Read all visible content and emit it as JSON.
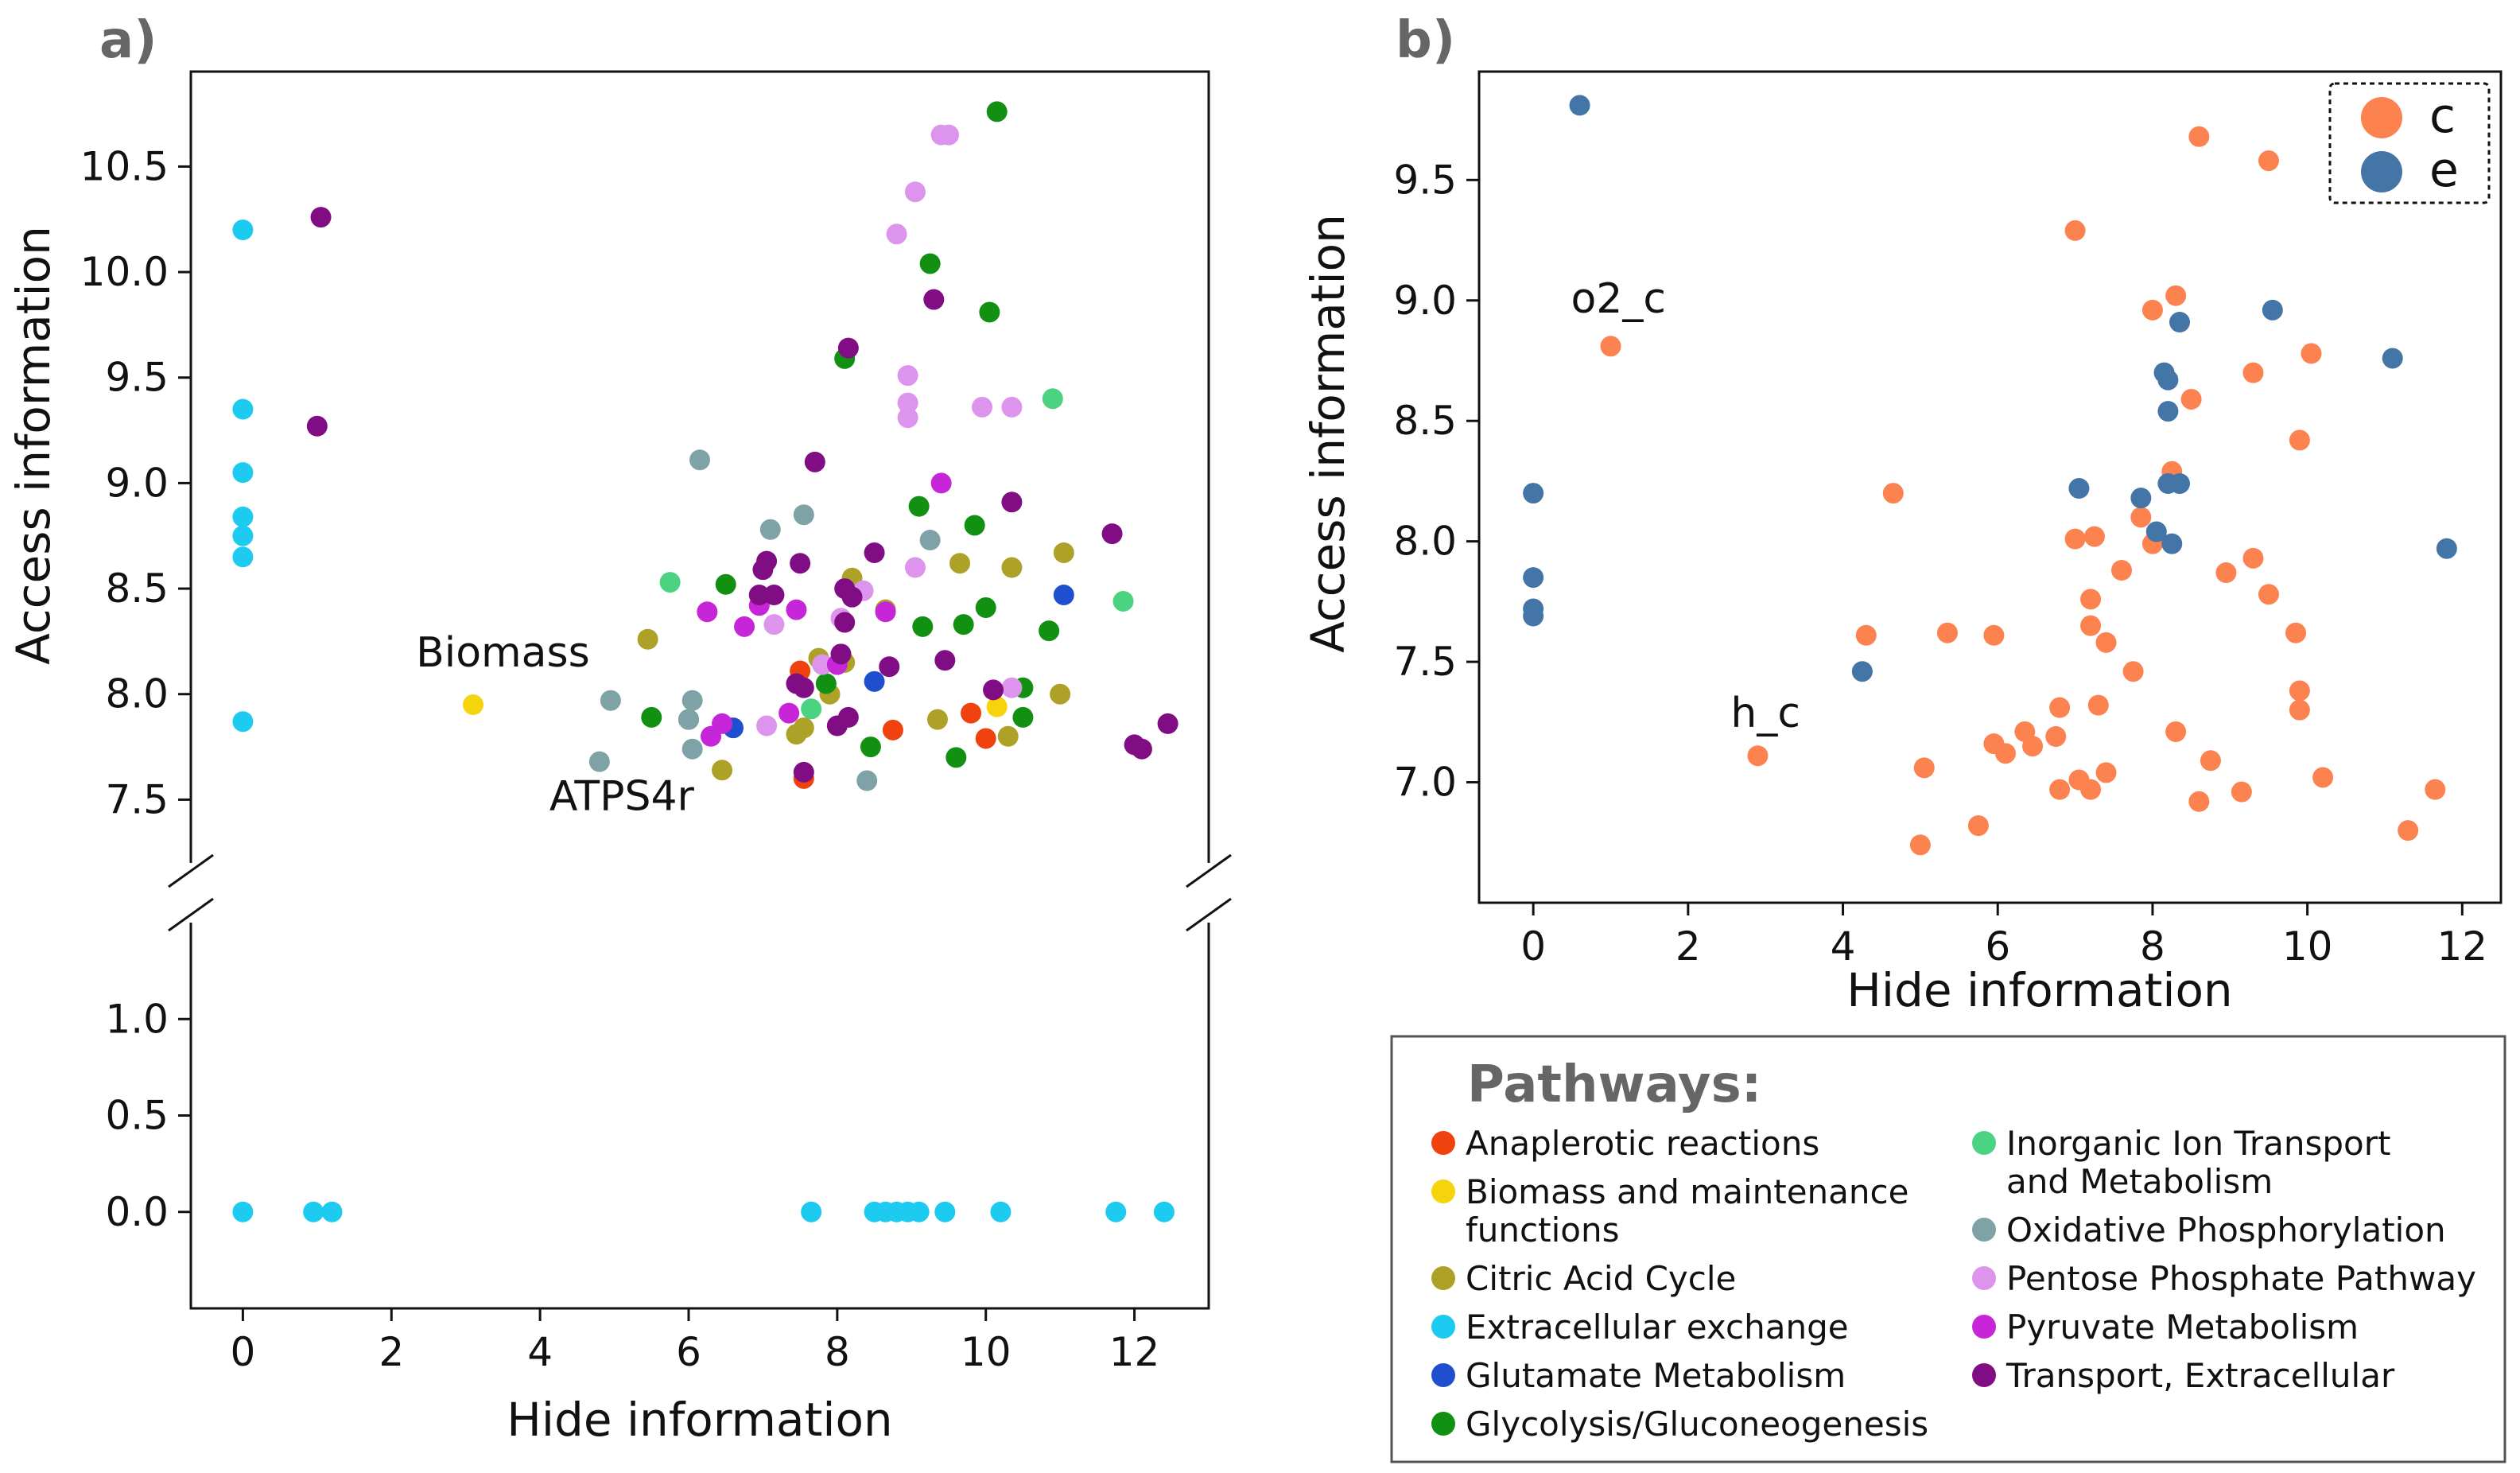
{
  "chart_data": [
    {
      "panel": "a)",
      "type": "scatter",
      "broken_y_axis": true,
      "xlabel": "Hide information",
      "ylabel": "Access information",
      "xlim": [
        -0.7,
        13.0
      ],
      "ylim_upper": [
        7.2,
        10.95
      ],
      "ylim_lower": [
        -0.5,
        1.5
      ],
      "xticks": [
        0,
        2,
        4,
        6,
        8,
        10,
        12
      ],
      "yticks_upper": [
        7.5,
        8.0,
        8.5,
        9.0,
        9.5,
        10.0,
        10.5
      ],
      "yticks_lower": [
        0.0,
        0.5,
        1.0
      ],
      "tick_labels_x": [
        "0",
        "2",
        "4",
        "6",
        "8",
        "10",
        "12"
      ],
      "tick_labels_y_upper": [
        "7.5",
        "8.0",
        "8.5",
        "9.0",
        "9.5",
        "10.0",
        "10.5"
      ],
      "tick_labels_y_lower": [
        "0.0",
        "0.5",
        "1.0"
      ],
      "annotations": [
        {
          "text": "Biomass",
          "x": 3.5,
          "y": 8.13
        },
        {
          "text": "ATPS4r",
          "x": 5.1,
          "y": 7.45
        }
      ],
      "series": [
        {
          "name": "Anaplerotic reactions",
          "color": "#f0420f",
          "points": [
            [
              7.5,
              8.11
            ],
            [
              7.55,
              7.6
            ],
            [
              8.75,
              7.83
            ],
            [
              9.8,
              7.91
            ],
            [
              10.0,
              7.79
            ]
          ]
        },
        {
          "name": "Biomass and maintenance functions",
          "color": "#f6d40d",
          "points": [
            [
              3.1,
              7.95
            ],
            [
              10.15,
              7.94
            ]
          ]
        },
        {
          "name": "Citric Acid Cycle",
          "color": "#aea128",
          "points": [
            [
              5.45,
              8.26
            ],
            [
              6.45,
              7.64
            ],
            [
              7.45,
              7.81
            ],
            [
              7.55,
              7.84
            ],
            [
              7.75,
              8.17
            ],
            [
              7.9,
              8.0
            ],
            [
              8.1,
              8.15
            ],
            [
              8.2,
              8.55
            ],
            [
              8.65,
              8.4
            ],
            [
              9.35,
              7.88
            ],
            [
              9.65,
              8.62
            ],
            [
              10.35,
              8.6
            ],
            [
              10.3,
              7.8
            ],
            [
              11.0,
              8.0
            ],
            [
              11.05,
              8.67
            ]
          ]
        },
        {
          "name": "Extracellular exchange",
          "color": "#1ecbf0",
          "points": [
            [
              0,
              10.2
            ],
            [
              0,
              9.35
            ],
            [
              0,
              9.05
            ],
            [
              0,
              8.84
            ],
            [
              0,
              8.75
            ],
            [
              0,
              8.65
            ],
            [
              0,
              7.87
            ],
            [
              0,
              0
            ],
            [
              0.95,
              0
            ],
            [
              1.2,
              0
            ],
            [
              7.65,
              0
            ],
            [
              8.5,
              0
            ],
            [
              8.65,
              0
            ],
            [
              8.8,
              0
            ],
            [
              8.95,
              0
            ],
            [
              9.1,
              0
            ],
            [
              9.45,
              0
            ],
            [
              10.2,
              0
            ],
            [
              11.75,
              0
            ],
            [
              12.4,
              0
            ]
          ]
        },
        {
          "name": "Glutamate Metabolism",
          "color": "#1f4fcf",
          "points": [
            [
              6.6,
              7.84
            ],
            [
              8.5,
              8.06
            ],
            [
              11.05,
              8.47
            ]
          ]
        },
        {
          "name": "Glycolysis/Gluconeogenesis",
          "color": "#119011",
          "points": [
            [
              5.5,
              7.89
            ],
            [
              6.0,
              7.88
            ],
            [
              6.5,
              8.52
            ],
            [
              7.85,
              8.05
            ],
            [
              8.1,
              9.59
            ],
            [
              8.45,
              7.75
            ],
            [
              9.1,
              8.89
            ],
            [
              9.15,
              8.32
            ],
            [
              9.25,
              10.04
            ],
            [
              9.6,
              7.7
            ],
            [
              9.7,
              8.33
            ],
            [
              9.85,
              8.8
            ],
            [
              10.0,
              8.41
            ],
            [
              10.05,
              9.81
            ],
            [
              10.15,
              10.76
            ],
            [
              10.5,
              7.89
            ],
            [
              10.5,
              8.03
            ],
            [
              10.85,
              8.3
            ]
          ]
        },
        {
          "name": "Inorganic Ion Transport and Metabolism",
          "color": "#4cd381",
          "points": [
            [
              5.75,
              8.53
            ],
            [
              7.65,
              7.93
            ],
            [
              10.9,
              9.4
            ],
            [
              11.85,
              8.44
            ]
          ]
        },
        {
          "name": "Oxidative Phosphorylation",
          "color": "#7fa2a6",
          "points": [
            [
              4.8,
              7.68
            ],
            [
              4.95,
              7.97
            ],
            [
              6.05,
              7.97
            ],
            [
              6.05,
              7.74
            ],
            [
              6.15,
              9.11
            ],
            [
              7.1,
              8.78
            ],
            [
              7.55,
              8.85
            ],
            [
              8.4,
              7.59
            ],
            [
              9.25,
              8.73
            ],
            [
              6.0,
              7.88
            ]
          ]
        },
        {
          "name": "Pentose Phosphate Pathway",
          "color": "#dc94ec",
          "points": [
            [
              7.05,
              7.85
            ],
            [
              7.15,
              8.33
            ],
            [
              7.8,
              8.14
            ],
            [
              8.05,
              8.36
            ],
            [
              8.35,
              8.49
            ],
            [
              8.8,
              10.18
            ],
            [
              8.95,
              9.51
            ],
            [
              8.95,
              9.38
            ],
            [
              8.95,
              9.31
            ],
            [
              9.05,
              10.38
            ],
            [
              9.05,
              8.6
            ],
            [
              9.4,
              10.65
            ],
            [
              9.5,
              10.65
            ],
            [
              9.95,
              9.36
            ],
            [
              10.35,
              9.36
            ],
            [
              10.35,
              8.03
            ]
          ]
        },
        {
          "name": "Pyruvate Metabolism",
          "color": "#c626d8",
          "points": [
            [
              6.25,
              8.39
            ],
            [
              6.3,
              7.8
            ],
            [
              6.45,
              7.86
            ],
            [
              6.75,
              8.32
            ],
            [
              6.95,
              8.42
            ],
            [
              7.35,
              7.91
            ],
            [
              7.45,
              8.4
            ],
            [
              8.0,
              8.14
            ],
            [
              8.65,
              8.39
            ],
            [
              9.4,
              9.0
            ]
          ]
        },
        {
          "name": "Transport, Extracellular",
          "color": "#810d85",
          "points": [
            [
              1.05,
              10.26
            ],
            [
              1.0,
              9.27
            ],
            [
              6.95,
              8.47
            ],
            [
              7.0,
              8.59
            ],
            [
              7.05,
              8.63
            ],
            [
              7.15,
              8.47
            ],
            [
              7.5,
              8.62
            ],
            [
              7.45,
              8.05
            ],
            [
              7.55,
              8.03
            ],
            [
              7.55,
              7.63
            ],
            [
              7.7,
              9.1
            ],
            [
              8.0,
              7.85
            ],
            [
              8.05,
              8.19
            ],
            [
              8.1,
              8.34
            ],
            [
              8.1,
              8.5
            ],
            [
              8.15,
              9.64
            ],
            [
              8.2,
              8.46
            ],
            [
              8.15,
              7.89
            ],
            [
              8.5,
              8.67
            ],
            [
              8.7,
              8.13
            ],
            [
              9.3,
              9.87
            ],
            [
              9.45,
              8.16
            ],
            [
              10.1,
              8.02
            ],
            [
              10.35,
              8.91
            ],
            [
              11.7,
              8.76
            ],
            [
              12.0,
              7.76
            ],
            [
              12.1,
              7.74
            ],
            [
              12.45,
              7.86
            ]
          ]
        }
      ]
    },
    {
      "panel": "b)",
      "type": "scatter",
      "xlabel": "Hide information",
      "ylabel": "Access information",
      "xlim": [
        -0.7,
        12.5
      ],
      "ylim": [
        6.5,
        9.95
      ],
      "xticks": [
        0,
        2,
        4,
        6,
        8,
        10,
        12
      ],
      "yticks": [
        7.0,
        7.5,
        8.0,
        8.5,
        9.0,
        9.5
      ],
      "tick_labels_x": [
        "0",
        "2",
        "4",
        "6",
        "8",
        "10",
        "12"
      ],
      "tick_labels_y": [
        "7.0",
        "7.5",
        "8.0",
        "8.5",
        "9.0",
        "9.5"
      ],
      "legend_position": "top-right",
      "annotations": [
        {
          "text": "o2_c",
          "x": 1.1,
          "y": 8.95
        },
        {
          "text": "h_c",
          "x": 3.0,
          "y": 7.23
        }
      ],
      "series": [
        {
          "name": "c",
          "color": "#fc8250",
          "points": [
            [
              1.0,
              8.81
            ],
            [
              2.9,
              7.11
            ],
            [
              4.3,
              7.61
            ],
            [
              4.65,
              8.2
            ],
            [
              5.0,
              6.74
            ],
            [
              5.05,
              7.06
            ],
            [
              5.35,
              7.62
            ],
            [
              5.75,
              6.82
            ],
            [
              5.95,
              7.61
            ],
            [
              5.95,
              7.16
            ],
            [
              6.1,
              7.12
            ],
            [
              6.35,
              7.21
            ],
            [
              6.45,
              7.15
            ],
            [
              6.75,
              7.19
            ],
            [
              6.8,
              6.97
            ],
            [
              6.8,
              7.31
            ],
            [
              7.0,
              9.29
            ],
            [
              7.0,
              8.01
            ],
            [
              7.05,
              7.01
            ],
            [
              7.2,
              7.76
            ],
            [
              7.2,
              7.65
            ],
            [
              7.2,
              6.97
            ],
            [
              7.25,
              8.02
            ],
            [
              7.3,
              7.32
            ],
            [
              7.4,
              7.58
            ],
            [
              7.4,
              7.04
            ],
            [
              7.6,
              7.88
            ],
            [
              7.75,
              7.46
            ],
            [
              7.85,
              8.1
            ],
            [
              8.0,
              8.96
            ],
            [
              8.0,
              7.99
            ],
            [
              8.25,
              8.29
            ],
            [
              8.3,
              9.02
            ],
            [
              8.3,
              7.21
            ],
            [
              8.5,
              8.59
            ],
            [
              8.6,
              9.68
            ],
            [
              8.6,
              6.92
            ],
            [
              8.75,
              7.09
            ],
            [
              8.95,
              7.87
            ],
            [
              9.15,
              6.96
            ],
            [
              9.3,
              8.7
            ],
            [
              9.3,
              7.93
            ],
            [
              9.5,
              9.58
            ],
            [
              9.5,
              7.78
            ],
            [
              9.85,
              7.62
            ],
            [
              9.9,
              8.42
            ],
            [
              9.9,
              7.38
            ],
            [
              9.9,
              7.3
            ],
            [
              10.05,
              8.78
            ],
            [
              10.2,
              7.02
            ],
            [
              11.3,
              6.8
            ],
            [
              11.65,
              6.97
            ]
          ]
        },
        {
          "name": "e",
          "color": "#4375a6",
          "points": [
            [
              0.6,
              9.81
            ],
            [
              0,
              8.2
            ],
            [
              0,
              7.85
            ],
            [
              0,
              7.72
            ],
            [
              0,
              7.69
            ],
            [
              4.25,
              7.46
            ],
            [
              7.05,
              8.22
            ],
            [
              7.85,
              8.18
            ],
            [
              8.05,
              8.04
            ],
            [
              8.15,
              8.7
            ],
            [
              8.2,
              8.67
            ],
            [
              8.2,
              8.54
            ],
            [
              8.2,
              8.24
            ],
            [
              8.25,
              7.99
            ],
            [
              8.35,
              8.91
            ],
            [
              8.35,
              8.24
            ],
            [
              9.55,
              8.96
            ],
            [
              11.1,
              8.76
            ],
            [
              11.8,
              7.97
            ]
          ]
        }
      ]
    }
  ],
  "pathways_legend": {
    "title": "Pathways:",
    "items_left": [
      {
        "label": "Anaplerotic reactions",
        "color": "#f0420f"
      },
      {
        "label": "Biomass and maintenance",
        "label2": "functions",
        "color": "#f6d40d"
      },
      {
        "label": "Citric Acid Cycle",
        "color": "#aea128"
      },
      {
        "label": "Extracellular exchange",
        "color": "#1ecbf0"
      },
      {
        "label": "Glutamate Metabolism",
        "color": "#1f4fcf"
      },
      {
        "label": "Glycolysis/Gluconeogenesis",
        "color": "#119011"
      }
    ],
    "items_right": [
      {
        "label": "Inorganic Ion Transport",
        "label2": "and Metabolism",
        "color": "#4cd381"
      },
      {
        "label": "Oxidative Phosphorylation",
        "color": "#7fa2a6"
      },
      {
        "label": "Pentose Phosphate Pathway",
        "color": "#dc94ec"
      },
      {
        "label": "Pyruvate Metabolism",
        "color": "#c626d8"
      },
      {
        "label": "Transport, Extracellular",
        "color": "#810d85"
      }
    ]
  }
}
